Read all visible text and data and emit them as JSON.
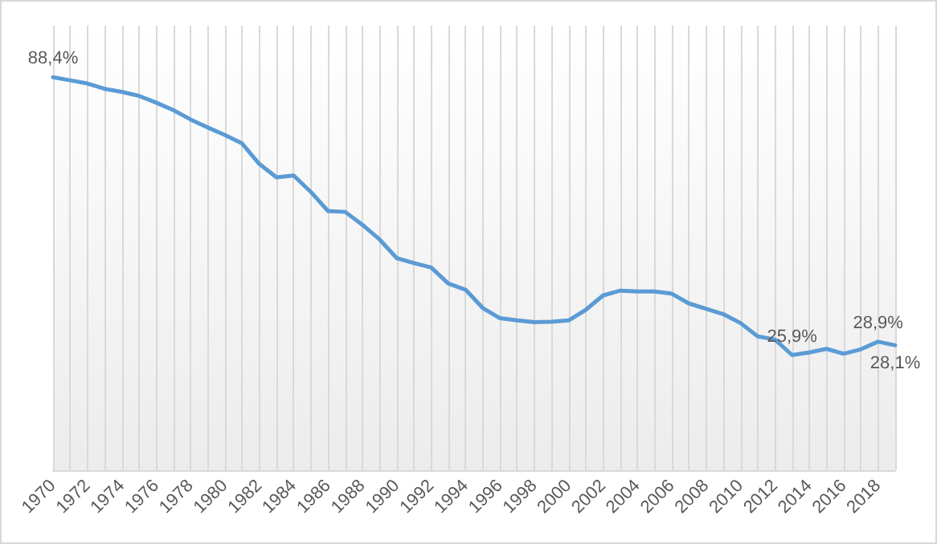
{
  "chart_data": {
    "type": "line",
    "categories": [
      "1970",
      null,
      "1972",
      null,
      "1974",
      null,
      "1976",
      null,
      "1978",
      null,
      "1980",
      null,
      "1982",
      null,
      "1984",
      null,
      "1986",
      null,
      "1988",
      null,
      "1990",
      null,
      "1992",
      null,
      "1994",
      null,
      "1996",
      null,
      "1998",
      null,
      "2000",
      null,
      "2002",
      null,
      "2004",
      null,
      "2006",
      null,
      "2008",
      null,
      "2010",
      null,
      "2012",
      null,
      "2014",
      null,
      "2016",
      null,
      "2018",
      null
    ],
    "series": [
      {
        "color": "#5b9bd5",
        "values": [
          88.4,
          87.7,
          87.0,
          85.8,
          85.1,
          84.2,
          82.7,
          81.0,
          78.9,
          77.1,
          75.4,
          73.5,
          68.9,
          65.9,
          66.3,
          62.6,
          58.3,
          58.1,
          55.2,
          51.9,
          47.7,
          46.6,
          45.6,
          42.0,
          40.6,
          36.5,
          34.2,
          33.7,
          33.3,
          33.4,
          33.7,
          36.1,
          39.3,
          40.4,
          40.2,
          40.2,
          39.7,
          37.5,
          36.3,
          35.1,
          33.1,
          30.1,
          29.4,
          25.9,
          26.5,
          27.3,
          26.2,
          27.2,
          28.9,
          28.1
        ],
        "value_labels": [
          "88,4%",
          null,
          null,
          null,
          null,
          null,
          null,
          null,
          null,
          null,
          null,
          null,
          null,
          null,
          null,
          null,
          null,
          null,
          null,
          null,
          null,
          null,
          null,
          null,
          null,
          null,
          null,
          null,
          null,
          null,
          null,
          null,
          null,
          null,
          null,
          null,
          null,
          null,
          null,
          null,
          null,
          null,
          null,
          "25,9%",
          null,
          null,
          null,
          null,
          "28,9%",
          "28,1%"
        ]
      }
    ],
    "grid": "x",
    "marker": "none",
    "line_style": "solid"
  }
}
